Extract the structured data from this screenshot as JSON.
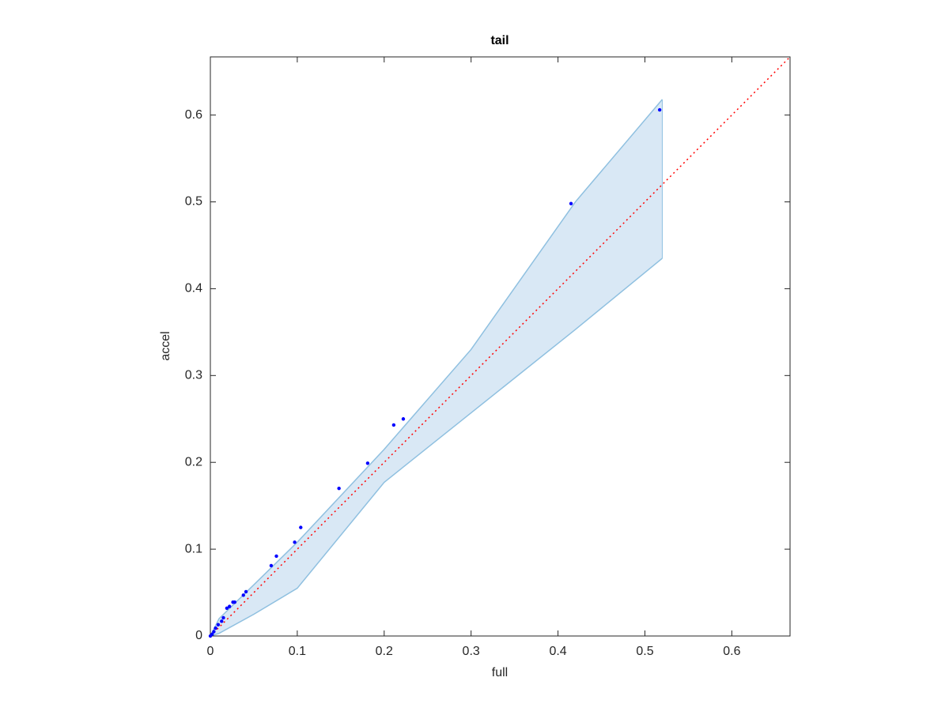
{
  "chart_data": {
    "type": "scatter",
    "title": "tail",
    "x_label": "full",
    "y_label": "accel",
    "xlim": [
      0,
      0.667
    ],
    "ylim": [
      0,
      0.667
    ],
    "xticks": [
      0,
      0.1,
      0.2,
      0.3,
      0.4,
      0.5,
      0.6
    ],
    "yticks": [
      0,
      0.1,
      0.2,
      0.3,
      0.4,
      0.5,
      0.6
    ],
    "grid": false,
    "series": [
      {
        "color": "#0000ff",
        "x": [
          0.517,
          0.415,
          0.222,
          0.211,
          0.181,
          0.148,
          0.104,
          0.097,
          0.076,
          0.07,
          0.041,
          0.038,
          0.028,
          0.026,
          0.022,
          0.019,
          0.015,
          0.013,
          0.009,
          0.006,
          0.004,
          0.002,
          0
        ],
        "values": [
          0.606,
          0.498,
          0.25,
          0.243,
          0.199,
          0.17,
          0.125,
          0.108,
          0.092,
          0.081,
          0.051,
          0.047,
          0.039,
          0.039,
          0.034,
          0.032,
          0.021,
          0.017,
          0.013,
          0.009,
          0.005,
          0.002,
          0
        ]
      }
    ],
    "band": {
      "color": "#d9e8f5",
      "edge_color": "#8fc0e0",
      "x": [
        0,
        0.01,
        0.05,
        0.1,
        0.2,
        0.3,
        0.42,
        0.52
      ],
      "upper": [
        0,
        0.02,
        0.059,
        0.108,
        0.215,
        0.33,
        0.5,
        0.618
      ],
      "lower": [
        0,
        0.003,
        0.025,
        0.055,
        0.177,
        0.257,
        0.353,
        0.435
      ]
    },
    "reference_line": {
      "color": "#ff0000",
      "x": [
        0,
        0.667
      ],
      "values": [
        0,
        0.667
      ]
    }
  }
}
